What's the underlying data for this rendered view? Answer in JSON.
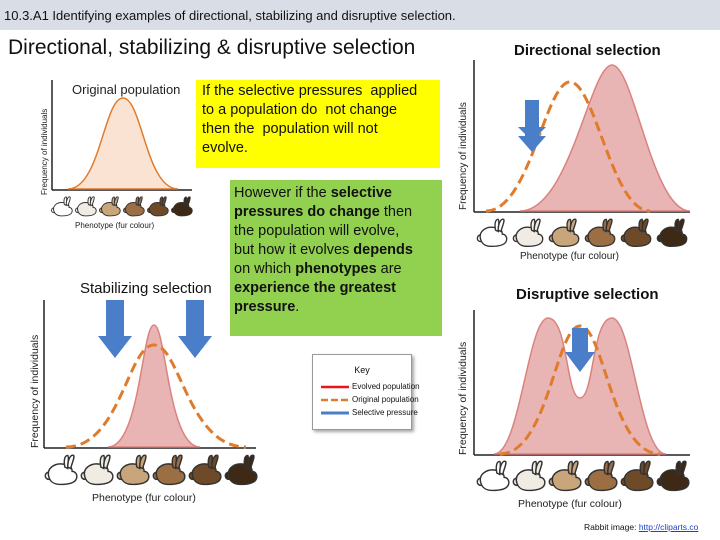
{
  "banner": "10.3.A1 Identifying examples of directional, stabilizing and disruptive selection.",
  "main_title": "Directional, stabilizing & disruptive selection",
  "original": {
    "label": "Original population",
    "ylabel": "Frequency of individuals",
    "xlabel": "Phenotype (fur colour)"
  },
  "yellow_box": "If the selective pressures  applied\nto a population do  not change\nthen the  population will not\nevolve.",
  "green_box": {
    "l1": "However if the ",
    "l1b": "selective",
    "l2b": "pressures do change",
    "l2": " then",
    "l3": "the population will evolve,",
    "l4": "but how it evolves ",
    "l4b": "depends",
    "l5": "on which ",
    "l5b": "phenotypes",
    "l5c": " are",
    "l6b": "experience the greatest",
    "l7b": "pressure",
    "l7": "."
  },
  "directional": {
    "title": "Directional selection",
    "ylabel": "Frequency of individuals",
    "xlabel": "Phenotype (fur colour)"
  },
  "stabilizing": {
    "title": "Stabilizing selection",
    "ylabel": "Frequency of individuals",
    "xlabel": "Phenotype (fur colour)"
  },
  "disruptive": {
    "title": "Disruptive selection",
    "ylabel": "Frequency of individuals",
    "xlabel": "Phenotype (fur colour)"
  },
  "key": {
    "title": "Key",
    "items": [
      {
        "label": "Evolved population",
        "color": "#e8151b"
      },
      {
        "label": "Original population",
        "color": "#e07b2c"
      },
      {
        "label": "Selective pressure",
        "color": "#4a7ec9"
      }
    ]
  },
  "credit": {
    "prefix": "Rabbit image: ",
    "link": "http://cliparts.co"
  },
  "colors": {
    "evolved_fill": "#e8b4b4",
    "evolved_line": "#d9837f",
    "original_fill": "#fbe3d3",
    "original_dash": "#e07b2c",
    "arrow": "#4a7ec9",
    "rabbit_shades": [
      "#ffffff",
      "#f0ece4",
      "#c9a57c",
      "#9b6e43",
      "#6f4a28",
      "#3d2916"
    ]
  }
}
